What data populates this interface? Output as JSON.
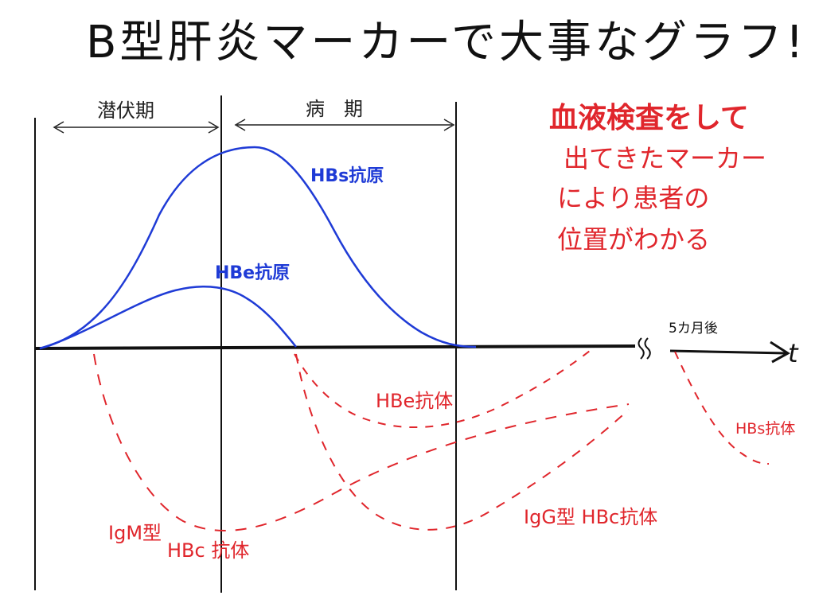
{
  "title": "B型肝炎マーカーで大事なグラフ!",
  "phases": {
    "latent": "潜伏期",
    "disease": "病　期"
  },
  "markers": {
    "hbs_antigen": "HBs抗原",
    "hbe_antigen": "HBe抗原",
    "hbe_antibody": "HBe抗体",
    "igg_hbc_antibody": "IgG型 HBc抗体",
    "igm_prefix": "IgM型",
    "igm_hbc_antibody": "HBc 抗体",
    "hbs_antibody": "HBs抗体"
  },
  "axis": {
    "break_after": "5カ月後",
    "t_label": "t"
  },
  "note": {
    "line1": "血液検査をして",
    "line2": "出てきたマーカー",
    "line3": "により患者の",
    "line4": "位置がわかる"
  },
  "colors": {
    "antigen": "#1f3bd6",
    "antibody": "#e0262c",
    "ink": "#111111"
  }
}
